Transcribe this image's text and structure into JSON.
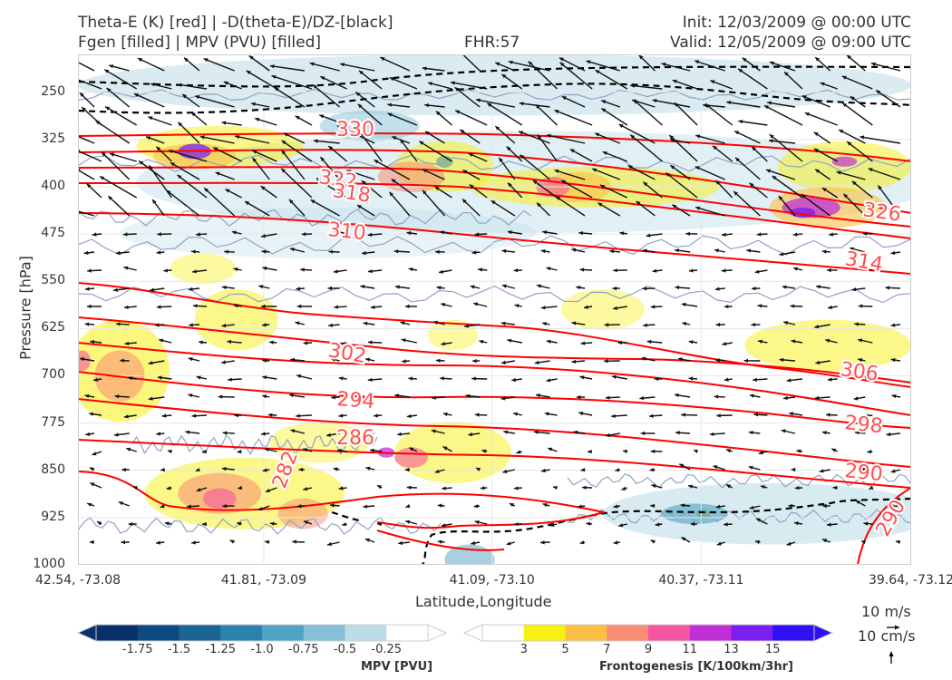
{
  "header": {
    "title_line1": "Theta-E (K) [red] | -D(theta-E)/DZ-[black]",
    "title_line2": "Fgen [filled] | MPV (PVU) [filled]",
    "fhr": "FHR:57",
    "init": "Init: 12/03/2009 @ 00:00 UTC",
    "valid": "Valid: 12/05/2009 @ 09:00 UTC"
  },
  "chart_data": {
    "type": "cross-section",
    "xlabel": "Latitude,Longitude",
    "ylabel": "Pressure [hPa]",
    "y_axis": {
      "scale": "linear",
      "inverted": true,
      "ylim": [
        1000,
        190
      ],
      "ticks": [
        "250",
        "325",
        "400",
        "475",
        "550",
        "625",
        "700",
        "775",
        "850",
        "925",
        "1000"
      ]
    },
    "x_ticks": [
      "42.54, -73.08",
      "41.81, -73.09",
      "41.09, -73.10",
      "40.37, -73.11",
      "39.64, -73.12"
    ],
    "theta_e_contours": [
      {
        "label": "330",
        "level": 330
      },
      {
        "label": "326",
        "level": 326
      },
      {
        "label": "322",
        "level": 322
      },
      {
        "label": "318",
        "level": 318
      },
      {
        "label": "314",
        "level": 314
      },
      {
        "label": "310",
        "level": 310
      },
      {
        "label": "306",
        "level": 306
      },
      {
        "label": "302",
        "level": 302
      },
      {
        "label": "298",
        "level": 298
      },
      {
        "label": "294",
        "level": 294
      },
      {
        "label": "290",
        "level": 290
      },
      {
        "label": "286",
        "level": 286
      },
      {
        "label": "282",
        "level": 282
      },
      {
        "label": "290",
        "level": 290
      }
    ],
    "mpv_colorbar": {
      "label": "MPV [PVU]",
      "ticks": [
        "-1.75",
        "-1.5",
        "-1.25",
        "-1.0",
        "-0.75",
        "-0.5",
        "-0.25"
      ],
      "colors": [
        "#08306b",
        "#0d4a84",
        "#1a6496",
        "#2b83ab",
        "#4fa3c4",
        "#84c1d8",
        "#bcdde8",
        "#ffffff"
      ]
    },
    "fgen_colorbar": {
      "label": "Frontogenesis [K/100km/3hr]",
      "ticks": [
        "3",
        "5",
        "7",
        "9",
        "11",
        "13",
        "15"
      ],
      "colors": [
        "#ffffff",
        "#f7f012",
        "#fbbf45",
        "#f98c72",
        "#f6569f",
        "#c22fd6",
        "#7b1ff0",
        "#2f10f5"
      ]
    },
    "reference_vectors": {
      "horizontal": "10 m/s",
      "vertical": "10 cm/s"
    },
    "colors": {
      "theta_e": "#ff0000",
      "dthetae_dz": "#000000",
      "mpv_outline": "#8fa3c6"
    }
  }
}
